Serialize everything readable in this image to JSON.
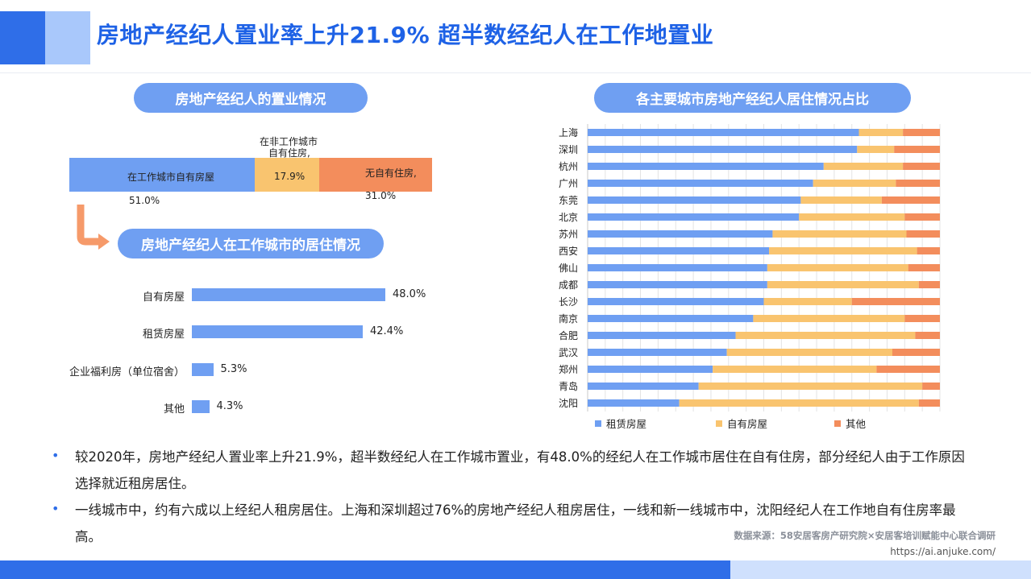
{
  "page": {
    "title": "房地产经纪人置业率上升21.9% 超半数经纪人在工作地置业"
  },
  "colors": {
    "blue": "#6f9ff2",
    "yellow": "#f9c46f",
    "orange": "#f38d5c",
    "title_blue": "#1e62e6"
  },
  "left": {
    "section1_title": "房地产经纪人的置业情况",
    "section2_title": "房地产经纪人在工作城市的居住情况",
    "arrow_icon": "arrow-right-icon"
  },
  "right": {
    "section_title": "各主要城市房地产经纪人居住情况占比"
  },
  "chart_data": [
    {
      "type": "bar",
      "stacked": true,
      "orientation": "horizontal",
      "segments": [
        {
          "name": "在工作城市自有房屋",
          "value": 51.0,
          "value_label": "51.0%",
          "color": "#6f9ff2"
        },
        {
          "name_line1": "在非工作城市",
          "name_line2": "自有住房,",
          "value": 17.9,
          "value_label": "17.9%",
          "color": "#f9c46f"
        },
        {
          "name": "无自有住房,",
          "value": 31.0,
          "value_label": "31.0%",
          "color": "#f38d5c"
        }
      ]
    },
    {
      "type": "bar",
      "orientation": "horizontal",
      "categories": [
        "自有房屋",
        "租赁房屋",
        "企业福利房（单位宿舍）",
        "其他"
      ],
      "values": [
        48.0,
        42.4,
        5.3,
        4.3
      ],
      "value_labels": [
        "48.0%",
        "42.4%",
        "5.3%",
        "4.3%"
      ],
      "color": "#6f9ff2"
    },
    {
      "type": "bar",
      "stacked": true,
      "orientation": "horizontal",
      "categories": [
        "上海",
        "深圳",
        "杭州",
        "广州",
        "东莞",
        "北京",
        "苏州",
        "西安",
        "佛山",
        "成都",
        "长沙",
        "南京",
        "合肥",
        "武汉",
        "郑州",
        "青岛",
        "沈阳"
      ],
      "series": [
        {
          "name": "租赁房屋",
          "color": "#6f9ff2",
          "values": [
            77,
            76.5,
            67,
            64,
            60.5,
            60,
            52.5,
            51.5,
            51,
            51,
            50,
            47,
            42,
            39.5,
            35.5,
            31.5,
            26
          ]
        },
        {
          "name": "自有房屋",
          "color": "#f9c46f",
          "values": [
            12.5,
            10.5,
            22.5,
            23.5,
            23,
            30,
            38,
            42,
            40,
            43,
            25,
            43,
            51,
            47,
            46.5,
            63.5,
            68
          ]
        },
        {
          "name": "其他",
          "color": "#f38d5c",
          "values": [
            10.5,
            13,
            10.5,
            12.5,
            16.5,
            10,
            9.5,
            6.5,
            9,
            6,
            25,
            10,
            7,
            13.5,
            18,
            5,
            6
          ]
        }
      ],
      "xlim": [
        0,
        100
      ],
      "grid": true,
      "legend": "bottom"
    }
  ],
  "bullets": [
    "较2020年，房地产经纪人置业率上升21.9%，超半数经纪人在工作城市置业，有48.0%的经纪人在工作城市居住在自有住房，部分经纪人由于工作原因选择就近租房居住。",
    "一线城市中，约有六成以上经纪人租房居住。上海和深圳超过76%的房地产经纪人租房居住，一线和新一线城市中，沈阳经纪人在工作地自有住房率最高。"
  ],
  "bullet_symbol": "•",
  "source": "数据来源：58安居客房产研究院×安居客培训赋能中心联合调研",
  "url": "https://ai.anjuke.com/"
}
